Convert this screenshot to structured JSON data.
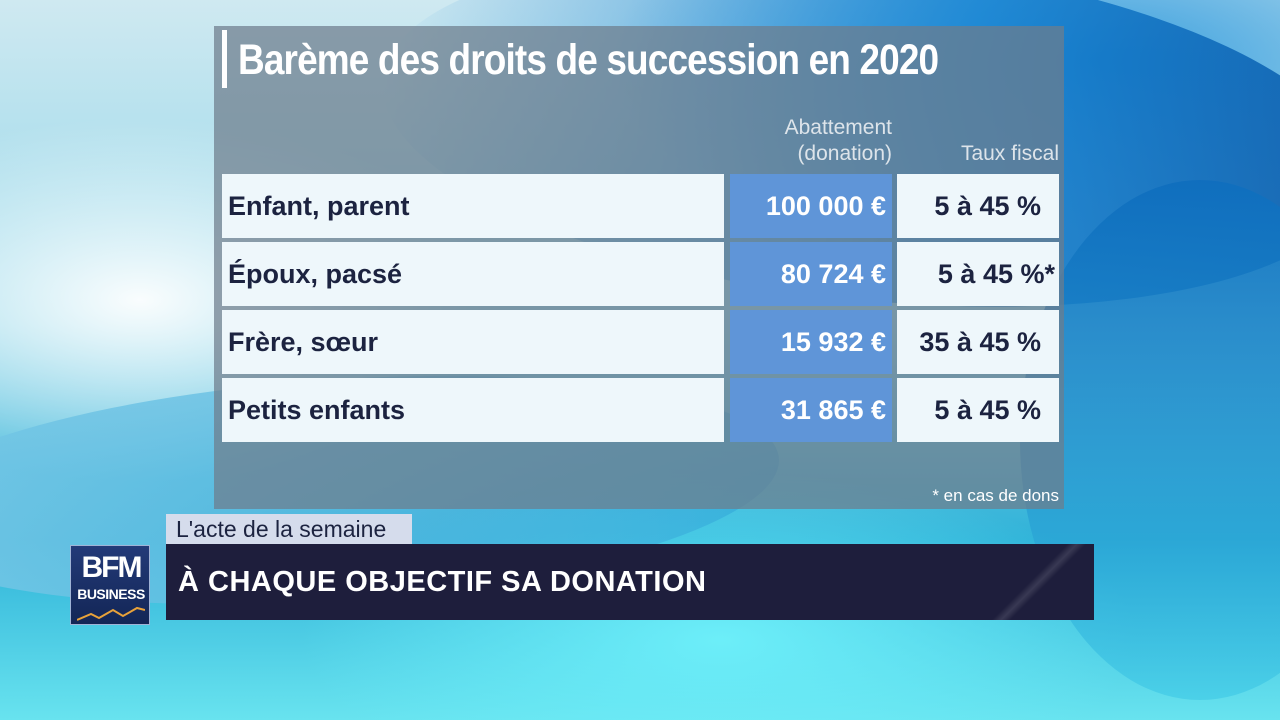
{
  "title": "Barème des droits de succession en 2020",
  "table": {
    "headers": {
      "abattement_line1": "Abattement",
      "abattement_line2": "(donation)",
      "taux": "Taux fiscal"
    },
    "rows": [
      {
        "label": "Enfant, parent",
        "amount": "100 000 €",
        "rate": "5 à 45 %"
      },
      {
        "label": "Époux, pacsé",
        "amount": "80 724 €",
        "rate": "5 à 45 %*"
      },
      {
        "label": "Frère, sœur",
        "amount": "15 932 €",
        "rate": "35 à 45 %"
      },
      {
        "label": "Petits enfants",
        "amount": "31 865 €",
        "rate": "5 à 45 %"
      }
    ],
    "footnote": "* en cas de dons"
  },
  "lower_third": {
    "tag": "L'acte de la semaine",
    "headline": "À CHAQUE OBJECTIF SA DONATION"
  },
  "logo": {
    "top": "BFM",
    "bottom": "BUSINESS"
  },
  "colors": {
    "amount_cell": "#5f95d8",
    "banner": "#1e1e3c",
    "text_dark": "#1c2340"
  }
}
